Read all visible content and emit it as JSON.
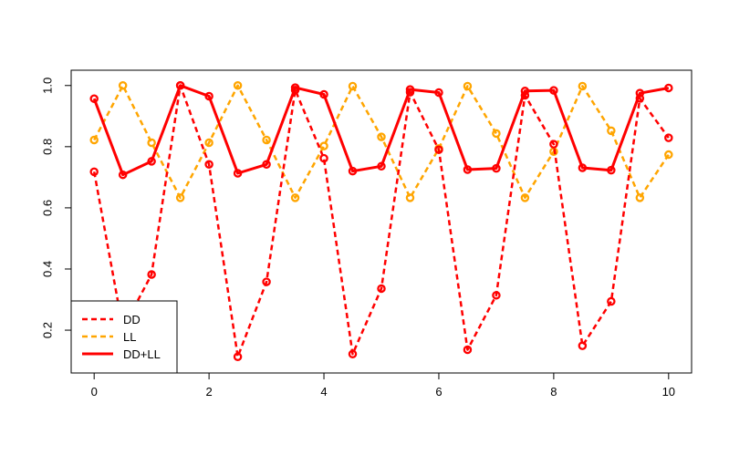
{
  "chart_data": {
    "type": "line",
    "title": "",
    "xlabel": "",
    "ylabel": "",
    "xlim": [
      -0.4,
      10.4
    ],
    "ylim": [
      0.06,
      1.05
    ],
    "xticks": [
      "0",
      "2",
      "4",
      "6",
      "8",
      "10"
    ],
    "yticks": [
      "0.2",
      "0.4",
      "0.6",
      "0.8",
      "1.0"
    ],
    "grid": false,
    "legend_position": "bottom-left",
    "x": [
      0,
      0.5,
      1,
      1.5,
      2,
      2.5,
      3,
      3.5,
      4,
      4.5,
      5,
      5.5,
      6,
      6.5,
      7,
      7.5,
      8,
      8.5,
      9,
      9.5,
      10
    ],
    "series": [
      {
        "name": "DD",
        "color": "#ff0000",
        "line_style": "dashed",
        "values": [
          0.718,
          0.205,
          0.382,
          1.0,
          0.742,
          0.113,
          0.358,
          0.985,
          0.762,
          0.122,
          0.336,
          0.978,
          0.79,
          0.136,
          0.314,
          0.968,
          0.808,
          0.149,
          0.294,
          0.958,
          0.829
        ]
      },
      {
        "name": "LL",
        "color": "#ffa500",
        "line_style": "dashed",
        "values": [
          0.822,
          1.0,
          0.813,
          0.633,
          0.813,
          1.0,
          0.822,
          0.633,
          0.802,
          0.998,
          0.832,
          0.633,
          0.794,
          0.998,
          0.843,
          0.633,
          0.784,
          0.998,
          0.852,
          0.633,
          0.774
        ]
      },
      {
        "name": "DD+LL",
        "color": "#ff0000",
        "line_style": "solid",
        "values": [
          0.957,
          0.708,
          0.752,
          1.0,
          0.965,
          0.713,
          0.742,
          0.993,
          0.971,
          0.72,
          0.736,
          0.987,
          0.977,
          0.725,
          0.729,
          0.982,
          0.984,
          0.731,
          0.723,
          0.975,
          0.992
        ]
      }
    ]
  }
}
